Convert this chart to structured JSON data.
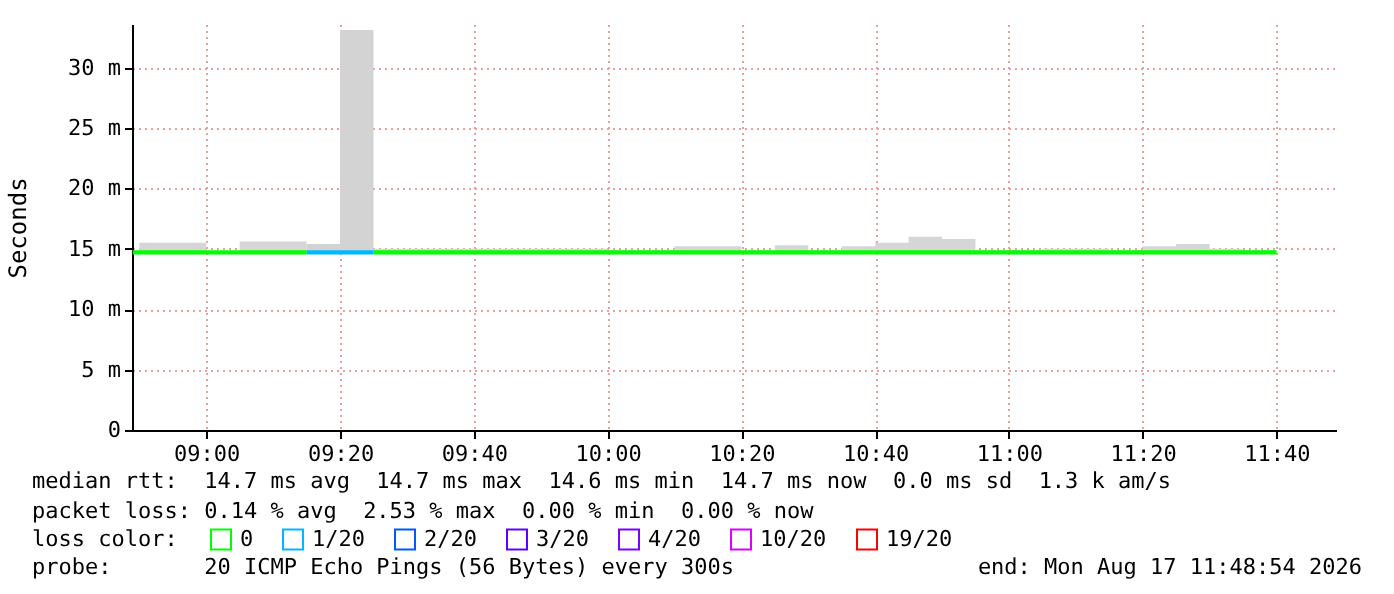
{
  "chart_data": {
    "type": "step",
    "ylabel": "Seconds",
    "legend_title": "loss color:",
    "legend": "bottom",
    "grid": true,
    "x": [
      "2026-08-17T08:49",
      "2026-08-17T08:50",
      "2026-08-17T08:55",
      "2026-08-17T09:00",
      "2026-08-17T09:05",
      "2026-08-17T09:10",
      "2026-08-17T09:15",
      "2026-08-17T09:20",
      "2026-08-17T09:25",
      "2026-08-17T09:30",
      "2026-08-17T09:35",
      "2026-08-17T09:40",
      "2026-08-17T09:45",
      "2026-08-17T09:50",
      "2026-08-17T09:55",
      "2026-08-17T10:00",
      "2026-08-17T10:05",
      "2026-08-17T10:10",
      "2026-08-17T10:15",
      "2026-08-17T10:20",
      "2026-08-17T10:25",
      "2026-08-17T10:30",
      "2026-08-17T10:35",
      "2026-08-17T10:40",
      "2026-08-17T10:45",
      "2026-08-17T10:50",
      "2026-08-17T10:55",
      "2026-08-17T11:00",
      "2026-08-17T11:05",
      "2026-08-17T11:10",
      "2026-08-17T11:15",
      "2026-08-17T11:20",
      "2026-08-17T11:25",
      "2026-08-17T11:30",
      "2026-08-17T11:35",
      "2026-08-17T11:40"
    ],
    "xlim": [
      "2026-08-17T08:48:54",
      "2026-08-17T11:48:54"
    ],
    "xticks": [
      {
        "value": "2026-08-17T09:00",
        "label": "09:00"
      },
      {
        "value": "2026-08-17T09:20",
        "label": "09:20"
      },
      {
        "value": "2026-08-17T09:40",
        "label": "09:40"
      },
      {
        "value": "2026-08-17T10:00",
        "label": "10:00"
      },
      {
        "value": "2026-08-17T10:20",
        "label": "10:20"
      },
      {
        "value": "2026-08-17T10:40",
        "label": "10:40"
      },
      {
        "value": "2026-08-17T11:00",
        "label": "11:00"
      },
      {
        "value": "2026-08-17T11:20",
        "label": "11:20"
      },
      {
        "value": "2026-08-17T11:40",
        "label": "11:40"
      }
    ],
    "ylim": [
      0,
      33.6
    ],
    "yticks": [
      0,
      {
        "value": 5,
        "label": "5 m"
      },
      {
        "value": 10,
        "label": "10 m"
      },
      {
        "value": 15,
        "label": "15 m"
      },
      {
        "value": 20,
        "label": "20 m"
      },
      {
        "value": 25,
        "label": "25 m"
      },
      {
        "value": 30,
        "label": "30 m"
      }
    ],
    "series": [
      {
        "name": "0",
        "color": "#00ff00",
        "values": [
          14.7,
          14.7,
          14.7,
          14.7,
          14.7,
          14.7,
          14.7,
          null,
          14.7,
          14.7,
          14.7,
          14.7,
          14.7,
          14.7,
          14.7,
          14.7,
          14.7,
          14.7,
          14.7,
          14.7,
          14.7,
          14.7,
          14.7,
          14.7,
          14.7,
          14.7,
          14.7,
          14.7,
          14.7,
          14.7,
          14.7,
          14.7,
          14.7,
          14.7,
          14.7,
          14.7
        ],
        "lower": [
          null,
          14.6,
          14.6,
          14.6,
          14.6,
          14.6,
          14.6,
          null,
          14.6,
          14.6,
          14.6,
          14.6,
          14.6,
          14.6,
          14.6,
          14.6,
          14.6,
          14.6,
          14.6,
          14.6,
          14.6,
          14.6,
          14.6,
          14.6,
          14.6,
          14.6,
          14.6,
          14.6,
          14.6,
          14.6,
          14.6,
          14.6,
          14.6,
          14.6,
          14.6,
          14.6
        ],
        "upper": [
          null,
          15.5,
          15.5,
          14.8,
          15.6,
          15.6,
          15.4,
          null,
          15.0,
          15.0,
          15.0,
          15.0,
          15.0,
          15.0,
          15.0,
          14.9,
          14.9,
          15.2,
          15.2,
          14.9,
          15.3,
          14.9,
          15.2,
          15.5,
          16.0,
          15.8,
          14.9,
          14.9,
          15.0,
          15.0,
          14.9,
          15.2,
          15.4,
          15.0,
          14.9,
          14.9
        ]
      },
      {
        "name": "1/20",
        "color": "#00b8ff",
        "values": [
          null,
          null,
          null,
          null,
          null,
          null,
          14.7,
          14.7,
          14.7,
          null,
          null,
          null,
          null,
          null,
          null,
          null,
          null,
          null,
          null,
          null,
          null,
          null,
          null,
          null,
          null,
          null,
          null,
          null,
          null,
          null,
          null,
          null,
          null,
          null,
          null,
          null
        ],
        "lower": [
          null,
          null,
          null,
          null,
          null,
          null,
          14.6,
          14.6,
          14.6,
          null,
          null,
          null,
          null,
          null,
          null,
          null,
          null,
          null,
          null,
          null,
          null,
          null,
          null,
          null,
          null,
          null,
          null,
          null,
          null,
          null,
          null,
          null,
          null,
          null,
          null,
          null
        ],
        "upper": [
          null,
          null,
          null,
          null,
          null,
          null,
          15.4,
          33.1,
          15.0,
          null,
          null,
          null,
          null,
          null,
          null,
          null,
          null,
          null,
          null,
          null,
          null,
          null,
          null,
          null,
          null,
          null,
          null,
          null,
          null,
          null,
          null,
          null,
          null,
          null,
          null,
          null
        ]
      },
      {
        "name": "2/20",
        "color": "#0059ff",
        "values": [
          null,
          null,
          null,
          null,
          null,
          null,
          null,
          null,
          null,
          null,
          null,
          null,
          null,
          null,
          null,
          null,
          null,
          null,
          null,
          null,
          null,
          null,
          null,
          null,
          null,
          null,
          null,
          null,
          null,
          null,
          null,
          null,
          null,
          null,
          null,
          null
        ]
      },
      {
        "name": "3/20",
        "color": "#5e00ff",
        "values": [
          null,
          null,
          null,
          null,
          null,
          null,
          null,
          null,
          null,
          null,
          null,
          null,
          null,
          null,
          null,
          null,
          null,
          null,
          null,
          null,
          null,
          null,
          null,
          null,
          null,
          null,
          null,
          null,
          null,
          null,
          null,
          null,
          null,
          null,
          null,
          null
        ]
      },
      {
        "name": "4/20",
        "color": "#7e00ff",
        "values": [
          null,
          null,
          null,
          null,
          null,
          null,
          null,
          null,
          null,
          null,
          null,
          null,
          null,
          null,
          null,
          null,
          null,
          null,
          null,
          null,
          null,
          null,
          null,
          null,
          null,
          null,
          null,
          null,
          null,
          null,
          null,
          null,
          null,
          null,
          null,
          null
        ]
      },
      {
        "name": "10/20",
        "color": "#dd00ff",
        "values": [
          null,
          null,
          null,
          null,
          null,
          null,
          null,
          null,
          null,
          null,
          null,
          null,
          null,
          null,
          null,
          null,
          null,
          null,
          null,
          null,
          null,
          null,
          null,
          null,
          null,
          null,
          null,
          null,
          null,
          null,
          null,
          null,
          null,
          null,
          null,
          null
        ]
      },
      {
        "name": "19/20",
        "color": "#ff0000",
        "values": [
          null,
          null,
          null,
          null,
          null,
          null,
          null,
          null,
          null,
          null,
          null,
          null,
          null,
          null,
          null,
          null,
          null,
          null,
          null,
          null,
          null,
          null,
          null,
          null,
          null,
          null,
          null,
          null,
          null,
          null,
          null,
          null,
          null,
          null,
          null,
          null
        ]
      }
    ],
    "annotations": [
      "median rtt:  14.7 ms avg  14.7 ms max  14.6 ms min  14.7 ms now  0.0 ms sd  1.3 k am/s",
      "packet loss: 0.14 % avg  2.53 % max  0.00 % min  0.00 % now",
      "probe:       20 ICMP Echo Pings (56 Bytes) every 300s",
      "end: Mon Aug 17 11:48:54 2026"
    ]
  }
}
